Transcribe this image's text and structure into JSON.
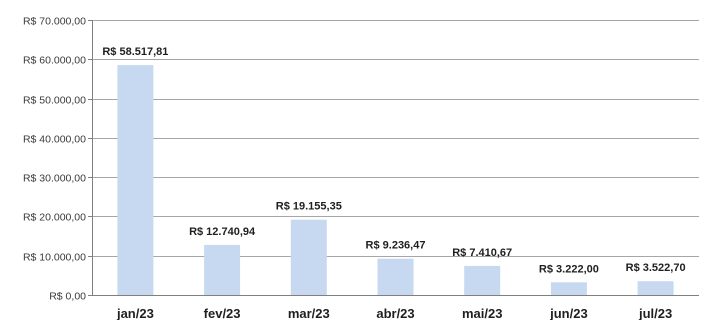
{
  "chart_data": {
    "type": "bar",
    "categories": [
      "jan/23",
      "fev/23",
      "mar/23",
      "abr/23",
      "mai/23",
      "jun/23",
      "jul/23"
    ],
    "values": [
      58517.81,
      12740.94,
      19155.35,
      9236.47,
      7410.67,
      3222.0,
      3522.7
    ],
    "data_labels": [
      "R$ 58.517,81",
      "R$ 12.740,94",
      "R$ 19.155,35",
      "R$ 9.236,47",
      "R$ 7.410,67",
      "R$ 3.222,00",
      "R$ 3.522,70"
    ],
    "y_ticks": [
      0,
      10000,
      20000,
      30000,
      40000,
      50000,
      60000,
      70000
    ],
    "y_tick_labels": [
      "R$ 0,00",
      "R$ 10.000,00",
      "R$ 20.000,00",
      "R$ 30.000,00",
      "R$ 40.000,00",
      "R$ 50.000,00",
      "R$ 60.000,00",
      "R$ 70.000,00"
    ],
    "ylim": [
      0,
      70000
    ],
    "title": "",
    "xlabel": "",
    "ylabel": "",
    "grid": true,
    "legend": "none",
    "colors": {
      "bar": "#c6d9f1",
      "grid": "#a6a6a6"
    }
  }
}
